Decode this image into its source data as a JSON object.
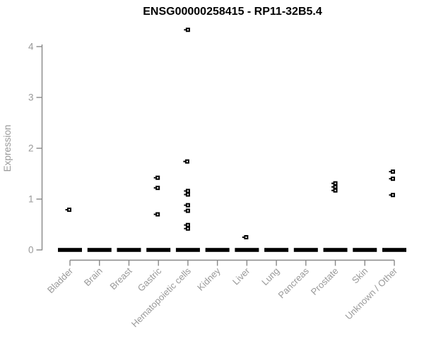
{
  "chart_data": {
    "type": "scatter",
    "title": "ENSG00000258415 - RP11-32B5.4",
    "xlabel": "",
    "ylabel": "Expression",
    "ylim": [
      0,
      4.4
    ],
    "yticks": [
      0,
      1,
      2,
      3,
      4
    ],
    "grid": false,
    "legend": null,
    "categories": [
      "Bladder",
      "Brain",
      "Breast",
      "Gastric",
      "Hematopoietic cells",
      "Kidney",
      "Liver",
      "Lung",
      "Pancreas",
      "Prostate",
      "Skin",
      "Unknown / Other"
    ],
    "zero_cluster_note": "every category has a dense cluster of overlapping points at expression 0, drawn as a thick black dash",
    "zero_clusters": [
      {
        "category": "Bladder",
        "value": 0
      },
      {
        "category": "Brain",
        "value": 0
      },
      {
        "category": "Breast",
        "value": 0
      },
      {
        "category": "Gastric",
        "value": 0
      },
      {
        "category": "Hematopoietic cells",
        "value": 0
      },
      {
        "category": "Kidney",
        "value": 0
      },
      {
        "category": "Liver",
        "value": 0
      },
      {
        "category": "Lung",
        "value": 0
      },
      {
        "category": "Pancreas",
        "value": 0
      },
      {
        "category": "Prostate",
        "value": 0
      },
      {
        "category": "Skin",
        "value": 0
      },
      {
        "category": "Unknown / Other",
        "value": 0
      }
    ],
    "points": [
      {
        "category": "Bladder",
        "value": 0.79,
        "dx": -1
      },
      {
        "category": "Gastric",
        "value": 1.42,
        "dx": -1
      },
      {
        "category": "Gastric",
        "value": 1.22,
        "dx": -1
      },
      {
        "category": "Gastric",
        "value": 0.7,
        "dx": -1
      },
      {
        "category": "Hematopoietic cells",
        "value": 4.33,
        "dx": 0
      },
      {
        "category": "Hematopoietic cells",
        "value": 1.74,
        "dx": -1
      },
      {
        "category": "Hematopoietic cells",
        "value": 1.16,
        "dx": 0
      },
      {
        "category": "Hematopoietic cells",
        "value": 1.09,
        "dx": 0
      },
      {
        "category": "Hematopoietic cells",
        "value": 0.88,
        "dx": 0
      },
      {
        "category": "Hematopoietic cells",
        "value": 0.77,
        "dx": 0
      },
      {
        "category": "Hematopoietic cells",
        "value": 0.49,
        "dx": 0
      },
      {
        "category": "Hematopoietic cells",
        "value": 0.42,
        "dx": 0
      },
      {
        "category": "Liver",
        "value": 0.25,
        "dx": -1
      },
      {
        "category": "Prostate",
        "value": 1.31,
        "dx": 0
      },
      {
        "category": "Prostate",
        "value": 1.24,
        "dx": 0
      },
      {
        "category": "Prostate",
        "value": 1.17,
        "dx": 0
      },
      {
        "category": "Unknown / Other",
        "value": 1.54,
        "dx": -2
      },
      {
        "category": "Unknown / Other",
        "value": 1.4,
        "dx": -2
      },
      {
        "category": "Unknown / Other",
        "value": 1.08,
        "dx": -2
      }
    ],
    "colors": {
      "marker": "#000000",
      "marker_center": "#ffffff",
      "axis": "#888888",
      "tick_label": "#999999",
      "title": "#000000",
      "background": "#ffffff"
    }
  }
}
